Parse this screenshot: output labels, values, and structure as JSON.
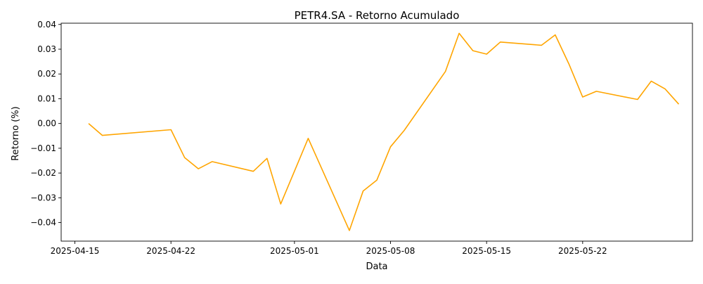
{
  "chart_data": {
    "type": "line",
    "title": "PETR4.SA - Retorno Acumulado",
    "xlabel": "Data",
    "ylabel": "Retorno (%)",
    "xlim": [
      "2025-04-14",
      "2025-05-30"
    ],
    "ylim": [
      -0.0475,
      0.0405
    ],
    "grid": false,
    "line_color": "#FFA500",
    "x_ticks": [
      "2025-04-15",
      "2025-04-22",
      "2025-05-01",
      "2025-05-08",
      "2025-05-15",
      "2025-05-22"
    ],
    "y_ticks": [
      0.04,
      0.03,
      0.02,
      0.01,
      0.0,
      -0.01,
      -0.02,
      -0.03,
      -0.04
    ],
    "y_tick_labels": [
      "0.04",
      "0.03",
      "0.02",
      "0.01",
      "0.00",
      "−0.01",
      "−0.02",
      "−0.03",
      "−0.04"
    ],
    "series": [
      {
        "x": [
          "2025-04-16",
          "2025-04-17",
          "2025-04-22",
          "2025-04-23",
          "2025-04-24",
          "2025-04-25",
          "2025-04-28",
          "2025-04-29",
          "2025-04-30",
          "2025-05-02",
          "2025-05-05",
          "2025-05-06",
          "2025-05-07",
          "2025-05-08",
          "2025-05-09",
          "2025-05-12",
          "2025-05-13",
          "2025-05-14",
          "2025-05-15",
          "2025-05-16",
          "2025-05-19",
          "2025-05-20",
          "2025-05-21",
          "2025-05-22",
          "2025-05-23",
          "2025-05-26",
          "2025-05-27",
          "2025-05-28",
          "2025-05-29"
        ],
        "values": [
          0.0,
          -0.0048,
          -0.0025,
          -0.0138,
          -0.0183,
          -0.0154,
          -0.0193,
          -0.0141,
          -0.0325,
          -0.006,
          -0.0432,
          -0.0273,
          -0.0229,
          -0.0094,
          -0.0028,
          0.021,
          0.0364,
          0.0294,
          0.028,
          0.0329,
          0.0316,
          0.0358,
          0.024,
          0.0107,
          0.013,
          0.0097,
          0.0171,
          0.014,
          0.0078
        ]
      }
    ]
  }
}
